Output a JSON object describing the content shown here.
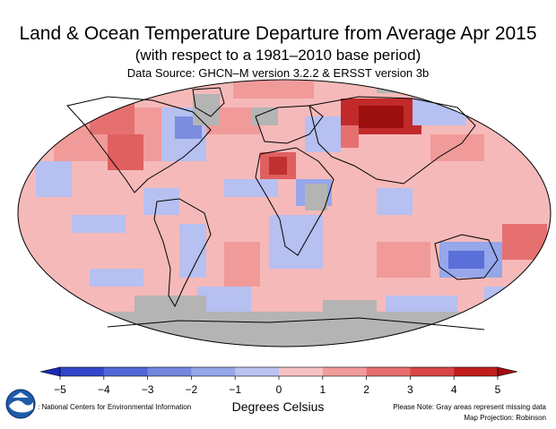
{
  "title": "Land & Ocean Temperature Departure from Average Apr 2015",
  "subtitle": "(with respect to a 1981–2010 base period)",
  "source": "Data Source: GHCN–M version 3.2.2 & ERSST version 3b",
  "colorbar": {
    "ticks": [
      "−5",
      "−4",
      "−3",
      "−2",
      "−1",
      "0",
      "1",
      "2",
      "3",
      "4",
      "5"
    ],
    "min": -5,
    "max": 5,
    "colors": [
      "#1a2ab5",
      "#3346cc",
      "#5267d6",
      "#7387df",
      "#96a7ea",
      "#b9c4f3",
      "#f8c2c2",
      "#f29b9b",
      "#e66e6e",
      "#d84545",
      "#c11d1d",
      "#a00e0e"
    ],
    "units": "Degrees Celsius"
  },
  "map": {
    "projection": "Map Projection: Robinson",
    "ocean_color": "#f6b9b9",
    "missing_color": "#b4b4b4"
  },
  "footer": {
    "credit": ": National Centers for Environmental Information",
    "note": "Please Note: Gray areas represent missing data",
    "projection": "Map Projection: Robinson"
  },
  "logo": {
    "icon": "noaa-logo-icon",
    "primary": "#1e5aa8",
    "accent": "#ffffff"
  }
}
